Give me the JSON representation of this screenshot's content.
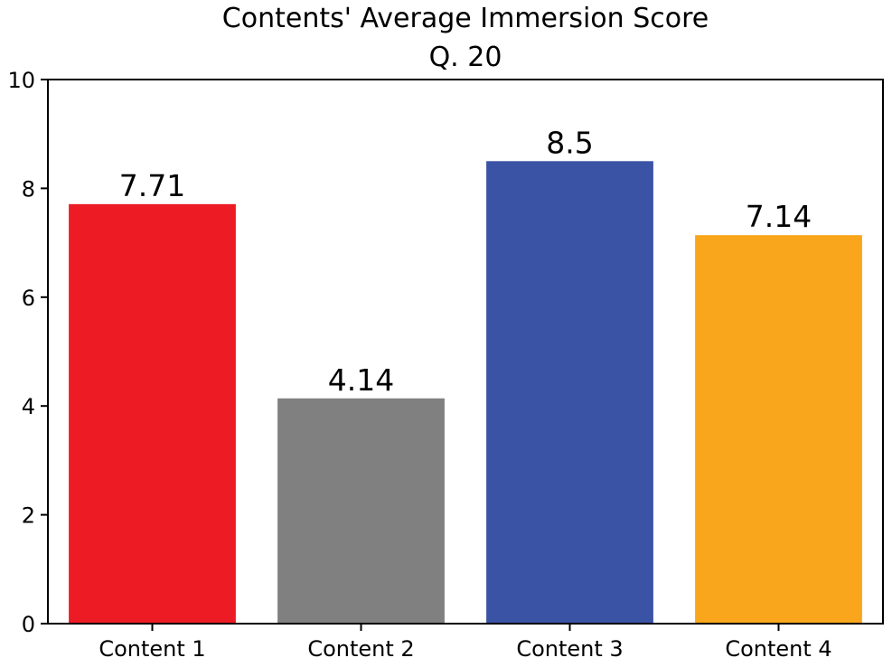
{
  "chart_data": {
    "type": "bar",
    "title": "Contents' Average Immersion Score",
    "subtitle": "Q. 20",
    "xlabel": "",
    "ylabel": "",
    "categories": [
      "Content 1",
      "Content 2",
      "Content 3",
      "Content 4"
    ],
    "values": [
      7.71,
      4.14,
      8.5,
      7.14
    ],
    "data_labels": [
      "7.71",
      "4.14",
      "8.5",
      "7.14"
    ],
    "colors": [
      "#ed1c24",
      "#808080",
      "#3a53a4",
      "#f9a61c"
    ],
    "ylim": [
      0,
      10
    ],
    "yticks": [
      0,
      2,
      4,
      6,
      8,
      10
    ],
    "grid": false,
    "legend": "none"
  }
}
